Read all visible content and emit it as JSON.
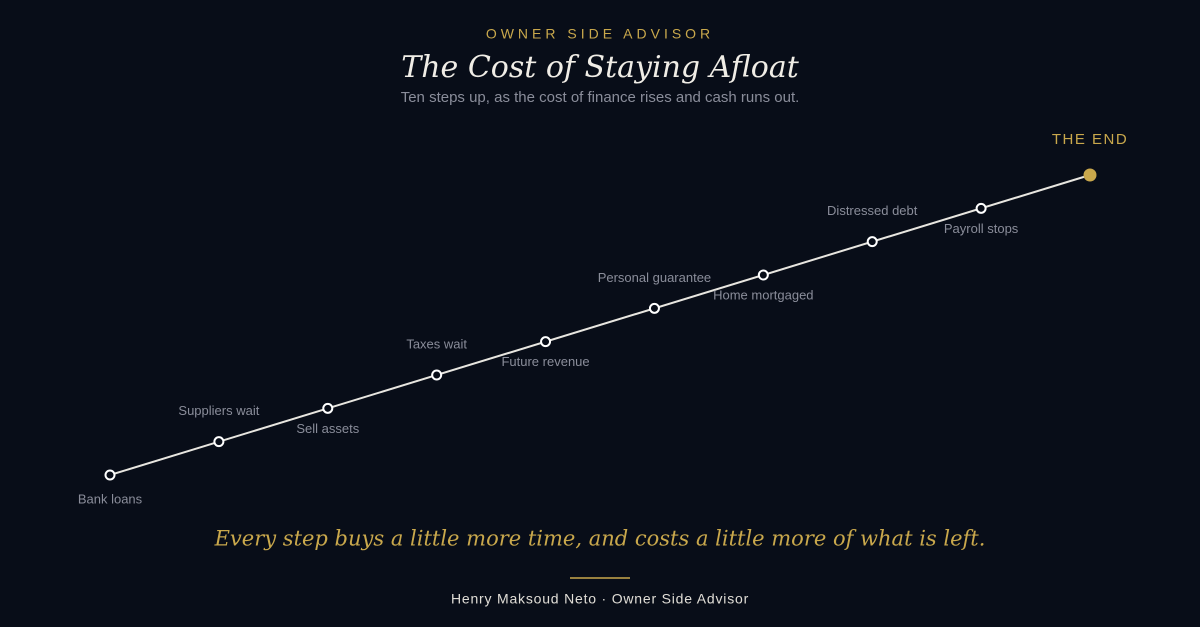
{
  "header": {
    "eyebrow": "OWNER SIDE ADVISOR",
    "title": "The Cost of Staying Afloat",
    "subtitle": "Ten steps up, as the cost of finance rises and cash runs out."
  },
  "steps": [
    {
      "label": "Bank loans"
    },
    {
      "label": "Suppliers wait"
    },
    {
      "label": "Sell assets"
    },
    {
      "label": "Taxes wait"
    },
    {
      "label": "Future revenue"
    },
    {
      "label": "Personal guarantee"
    },
    {
      "label": "Home mortgaged"
    },
    {
      "label": "Distressed debt"
    },
    {
      "label": "Payroll stops"
    }
  ],
  "end": {
    "label": "THE END"
  },
  "tagline": "Every step buys a little more time, and costs a little more of what is left.",
  "footer": "Henry Maksoud Neto · Owner Side Advisor"
}
